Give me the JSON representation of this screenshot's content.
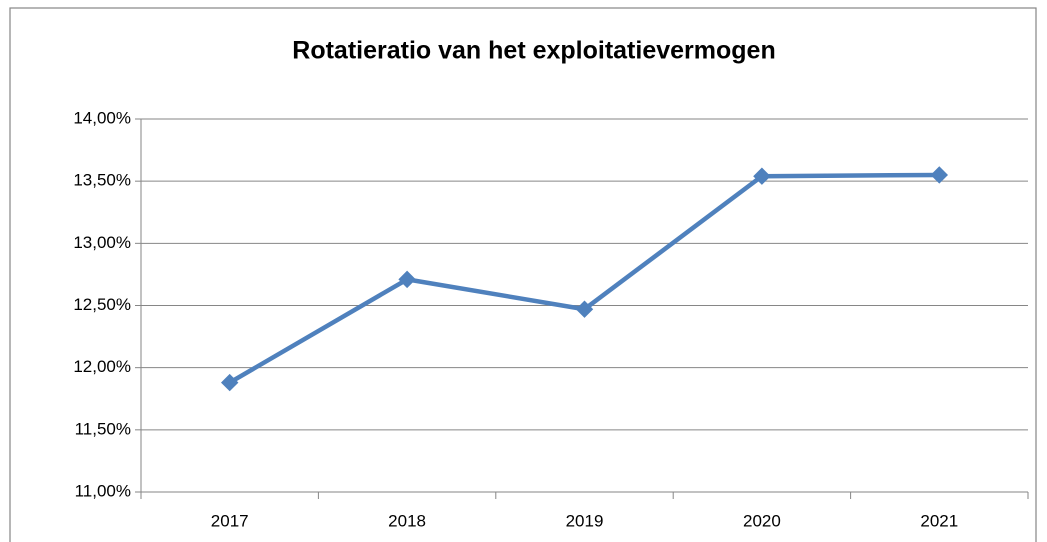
{
  "chart_data": {
    "type": "line",
    "title": "Rotatieratio van het exploitatievermogen",
    "categories": [
      "2017",
      "2018",
      "2019",
      "2020",
      "2021"
    ],
    "series": [
      {
        "name": "Rotatieratio",
        "color": "#4f81bd",
        "values": [
          11.88,
          12.71,
          12.47,
          13.54,
          13.55
        ]
      }
    ],
    "ylim": [
      11,
      14
    ],
    "yticks": [
      {
        "value": 11,
        "label": "11,00%"
      },
      {
        "value": 11.5,
        "label": "11,50%"
      },
      {
        "value": 12,
        "label": "12,00%"
      },
      {
        "value": 12.5,
        "label": "12,50%"
      },
      {
        "value": 13,
        "label": "13,00%"
      },
      {
        "value": 13.5,
        "label": "13,50%"
      },
      {
        "value": 14,
        "label": "14,00%"
      }
    ],
    "grid": true
  }
}
